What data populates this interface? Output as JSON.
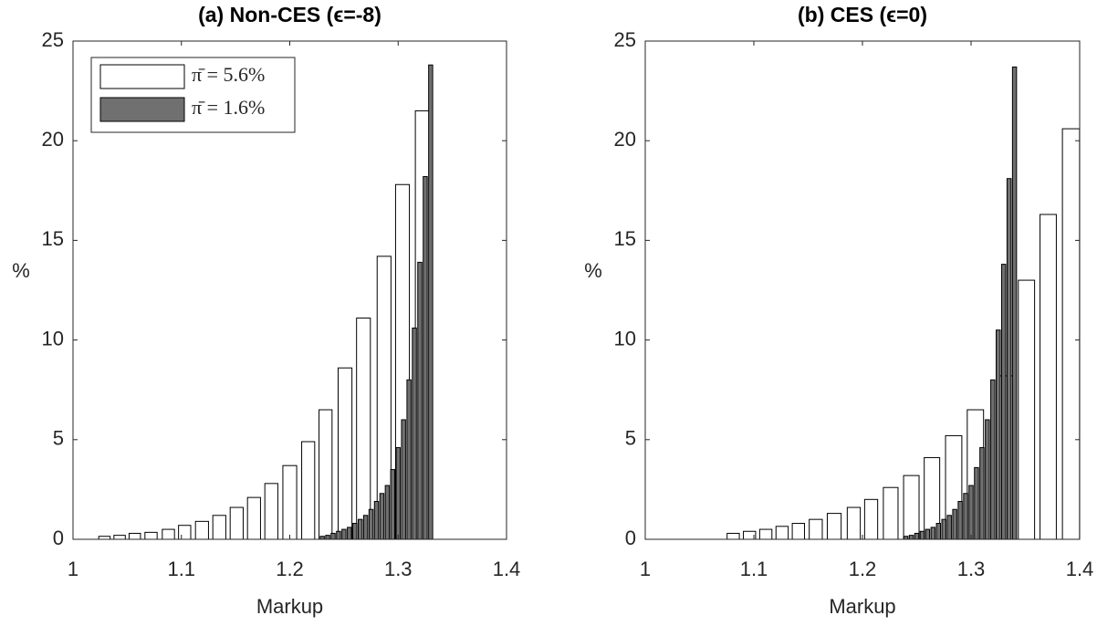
{
  "chart_data": [
    {
      "type": "bar",
      "title": "(a) Non-CES (ϵ=-8)",
      "x_label": "Markup",
      "y_label": "%",
      "xlim": [
        1,
        1.4
      ],
      "xticks": [
        1,
        1.1,
        1.2,
        1.3,
        1.4
      ],
      "ylim": [
        0,
        25
      ],
      "yticks": [
        0,
        5,
        10,
        15,
        20,
        25
      ],
      "legend": "northwest",
      "series": [
        {
          "name": "π̄ = 5.6%",
          "color": "#ffffff",
          "x": [
            1.029,
            1.043,
            1.057,
            1.072,
            1.088,
            1.103,
            1.119,
            1.135,
            1.151,
            1.167,
            1.183,
            1.2,
            1.217,
            1.233,
            1.251,
            1.268,
            1.287,
            1.304,
            1.323
          ],
          "values": [
            0.15,
            0.2,
            0.3,
            0.35,
            0.5,
            0.7,
            0.9,
            1.2,
            1.6,
            2.1,
            2.8,
            3.7,
            4.9,
            6.5,
            8.6,
            11.1,
            14.2,
            17.8,
            21.5
          ]
        },
        {
          "name": "π̄ = 1.6%",
          "color": "#707070",
          "x": [
            1.23,
            1.235,
            1.24,
            1.245,
            1.25,
            1.255,
            1.26,
            1.265,
            1.27,
            1.275,
            1.28,
            1.285,
            1.29,
            1.295,
            1.3,
            1.305,
            1.31,
            1.315,
            1.32,
            1.325,
            1.33
          ],
          "values": [
            0.15,
            0.2,
            0.3,
            0.4,
            0.5,
            0.6,
            0.8,
            1.0,
            1.2,
            1.5,
            1.9,
            2.3,
            2.7,
            3.5,
            4.6,
            6.0,
            8.0,
            10.6,
            13.9,
            18.2,
            23.8
          ]
        }
      ]
    },
    {
      "type": "bar",
      "title": "(b) CES (ϵ=0)",
      "x_label": "Markup",
      "y_label": "%",
      "xlim": [
        1,
        1.4
      ],
      "xticks": [
        1,
        1.1,
        1.2,
        1.3,
        1.4
      ],
      "ylim": [
        0,
        25
      ],
      "yticks": [
        0,
        5,
        10,
        15,
        20,
        25
      ],
      "series": [
        {
          "color": "#ffffff",
          "x": [
            1.081,
            1.096,
            1.111,
            1.126,
            1.141,
            1.157,
            1.174,
            1.192,
            1.208,
            1.226,
            1.245,
            1.264,
            1.284,
            1.304,
            1.331,
            1.351,
            1.371,
            1.392
          ],
          "values": [
            0.3,
            0.4,
            0.5,
            0.65,
            0.8,
            1.0,
            1.3,
            1.6,
            2.0,
            2.6,
            3.2,
            4.1,
            5.2,
            6.5,
            8.2,
            13.0,
            16.3,
            20.6
          ]
        },
        {
          "color": "#707070",
          "x": [
            1.24,
            1.245,
            1.25,
            1.255,
            1.26,
            1.265,
            1.27,
            1.275,
            1.28,
            1.285,
            1.29,
            1.295,
            1.3,
            1.305,
            1.31,
            1.315,
            1.32,
            1.325,
            1.33,
            1.335,
            1.34
          ],
          "values": [
            0.15,
            0.2,
            0.3,
            0.4,
            0.5,
            0.6,
            0.8,
            1.0,
            1.2,
            1.5,
            1.9,
            2.3,
            2.7,
            3.6,
            4.6,
            6.0,
            8.0,
            10.5,
            13.8,
            18.1,
            23.7
          ]
        }
      ]
    }
  ]
}
